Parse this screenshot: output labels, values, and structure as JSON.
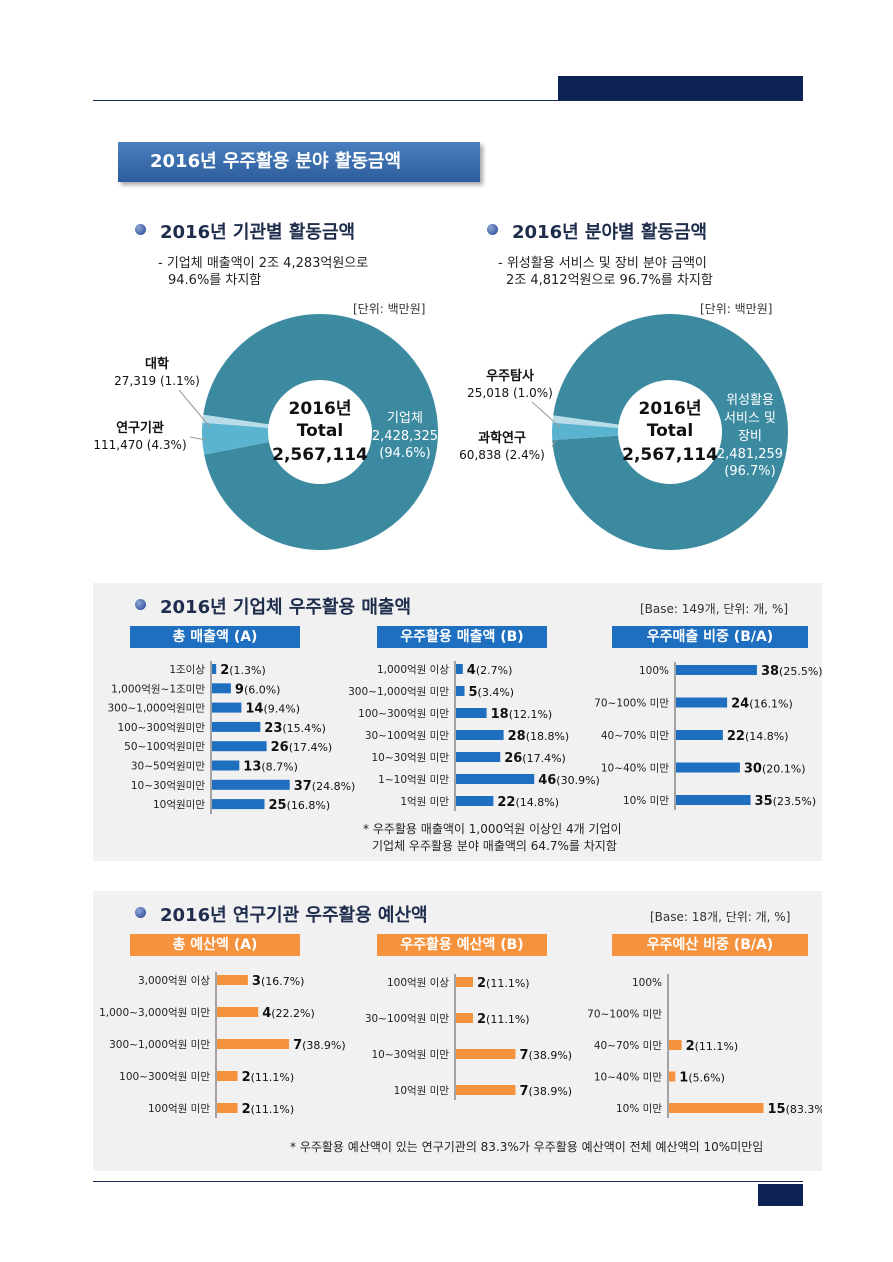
{
  "page_title": "2016년 우주활용 분야 활동금액",
  "donut_sections": [
    {
      "heading": "2016년 기관별 활동금액",
      "note_line1": "- 기업체 매출액이 2조 4,283억원으로",
      "note_line2": "94.6%를 차지함",
      "unit": "[단위: 백만원]"
    },
    {
      "heading": "2016년 분야별 활동금액",
      "note_line1": "- 위성활용 서비스 및 장비 분야 금액이",
      "note_line2": "2조 4,812억원으로 96.7%를 차지함",
      "unit": "[단위: 백만원]"
    }
  ],
  "company_section": {
    "heading": "2016년 기업체 우주활용 매출액",
    "base": "[Base: 149개, 단위: 개, %]",
    "col_titles": [
      "총 매출액 (A)",
      "우주활용 매출액 (B)",
      "우주매출 비중 (B/A)"
    ],
    "footnote_line1": "* 우주활용 매출액이 1,000억원 이상인 4개 기업이",
    "footnote_line2": "기업체 우주활용 분야 매출액의 64.7%를 차지함"
  },
  "research_section": {
    "heading": "2016년 연구기관 우주활용 예산액",
    "base": "[Base: 18개, 단위: 개, %]",
    "col_titles": [
      "총 예산액 (A)",
      "우주활용 예산액 (B)",
      "우주예산 비중 (B/A)"
    ],
    "footnote": "* 우주활용 예산액이 있는 연구기관의 83.3%가 우주활용 예산액이 전체 예산액의 10%미만임"
  },
  "colors": {
    "donut_main": "#3c8aa0",
    "donut_mid": "#5ab4d0",
    "donut_light": "#b8dce8",
    "bar_blue": "#1e6fbf",
    "bar_orange": "#f5923e",
    "banner": "#3a6fb0"
  },
  "chart_data": [
    {
      "type": "pie",
      "center_line1": "2016년",
      "center_line2": "Total",
      "center_total": "2,567,114",
      "slices": [
        {
          "name": "기업체",
          "value": 2428325,
          "value_label": "2,428,325",
          "pct_label": "(94.6%)"
        },
        {
          "name": "연구기관",
          "value": 111470,
          "value_label": "111,470 (4.3%)"
        },
        {
          "name": "대학",
          "value": 27319,
          "value_label": "27,319 (1.1%)"
        }
      ]
    },
    {
      "type": "pie",
      "center_line1": "2016년",
      "center_line2": "Total",
      "center_total": "2,567,114",
      "slices": [
        {
          "name": "위성활용 서비스 및 장비",
          "name_lines": [
            "위성활용",
            "서비스 및",
            "장비"
          ],
          "value": 2481259,
          "value_label": "2,481,259",
          "pct_label": "(96.7%)"
        },
        {
          "name": "과학연구",
          "value": 60838,
          "value_label": "60,838 (2.4%)"
        },
        {
          "name": "우주탐사",
          "value": 25018,
          "value_label": "25,018 (1.0%)"
        }
      ]
    },
    {
      "type": "bar",
      "title": "총 매출액 (A)",
      "categories": [
        "1조이상",
        "1,000억원~1조미만",
        "300~1,000억원미만",
        "100~300억원미만",
        "50~100억원미만",
        "30~50억원미만",
        "10~30억원미만",
        "10억원미만"
      ],
      "values": [
        2,
        9,
        14,
        23,
        26,
        13,
        37,
        25
      ],
      "pct": [
        "(1.3%)",
        "(6.0%)",
        "(9.4%)",
        "(15.4%)",
        "(17.4%)",
        "(8.7%)",
        "(24.8%)",
        "(16.8%)"
      ]
    },
    {
      "type": "bar",
      "title": "우주활용 매출액 (B)",
      "categories": [
        "1,000억원 이상",
        "300~1,000억원 미만",
        "100~300억원 미만",
        "30~100억원 미만",
        "10~30억원 미만",
        "1~10억원 미만",
        "1억원 미만"
      ],
      "values": [
        4,
        5,
        18,
        28,
        26,
        46,
        22
      ],
      "pct": [
        "(2.7%)",
        "(3.4%)",
        "(12.1%)",
        "(18.8%)",
        "(17.4%)",
        "(30.9%)",
        "(14.8%)"
      ]
    },
    {
      "type": "bar",
      "title": "우주매출 비중 (B/A)",
      "categories": [
        "100%",
        "70~100% 미만",
        "40~70% 미만",
        "10~40% 미만",
        "10% 미만"
      ],
      "values": [
        38,
        24,
        22,
        30,
        35
      ],
      "pct": [
        "(25.5%)",
        "(16.1%)",
        "(14.8%)",
        "(20.1%)",
        "(23.5%)"
      ]
    },
    {
      "type": "bar",
      "title": "총 예산액 (A)",
      "categories": [
        "3,000억원 이상",
        "1,000~3,000억원 미만",
        "300~1,000억원 미만",
        "100~300억원 미만",
        "100억원 미만"
      ],
      "values": [
        3,
        4,
        7,
        2,
        2
      ],
      "pct": [
        "(16.7%)",
        "(22.2%)",
        "(38.9%)",
        "(11.1%)",
        "(11.1%)"
      ]
    },
    {
      "type": "bar",
      "title": "우주활용 예산액 (B)",
      "categories": [
        "100억원 이상",
        "30~100억원 미만",
        "10~30억원 미만",
        "10억원 미만"
      ],
      "values": [
        2,
        2,
        7,
        7
      ],
      "pct": [
        "(11.1%)",
        "(11.1%)",
        "(38.9%)",
        "(38.9%)"
      ]
    },
    {
      "type": "bar",
      "title": "우주예산 비중 (B/A)",
      "categories": [
        "100%",
        "70~100% 미만",
        "40~70% 미만",
        "10~40% 미만",
        "10% 미만"
      ],
      "values": [
        null,
        null,
        2,
        1,
        15
      ],
      "pct": [
        "",
        "",
        "(11.1%)",
        "(5.6%)",
        "(83.3%)"
      ]
    }
  ]
}
